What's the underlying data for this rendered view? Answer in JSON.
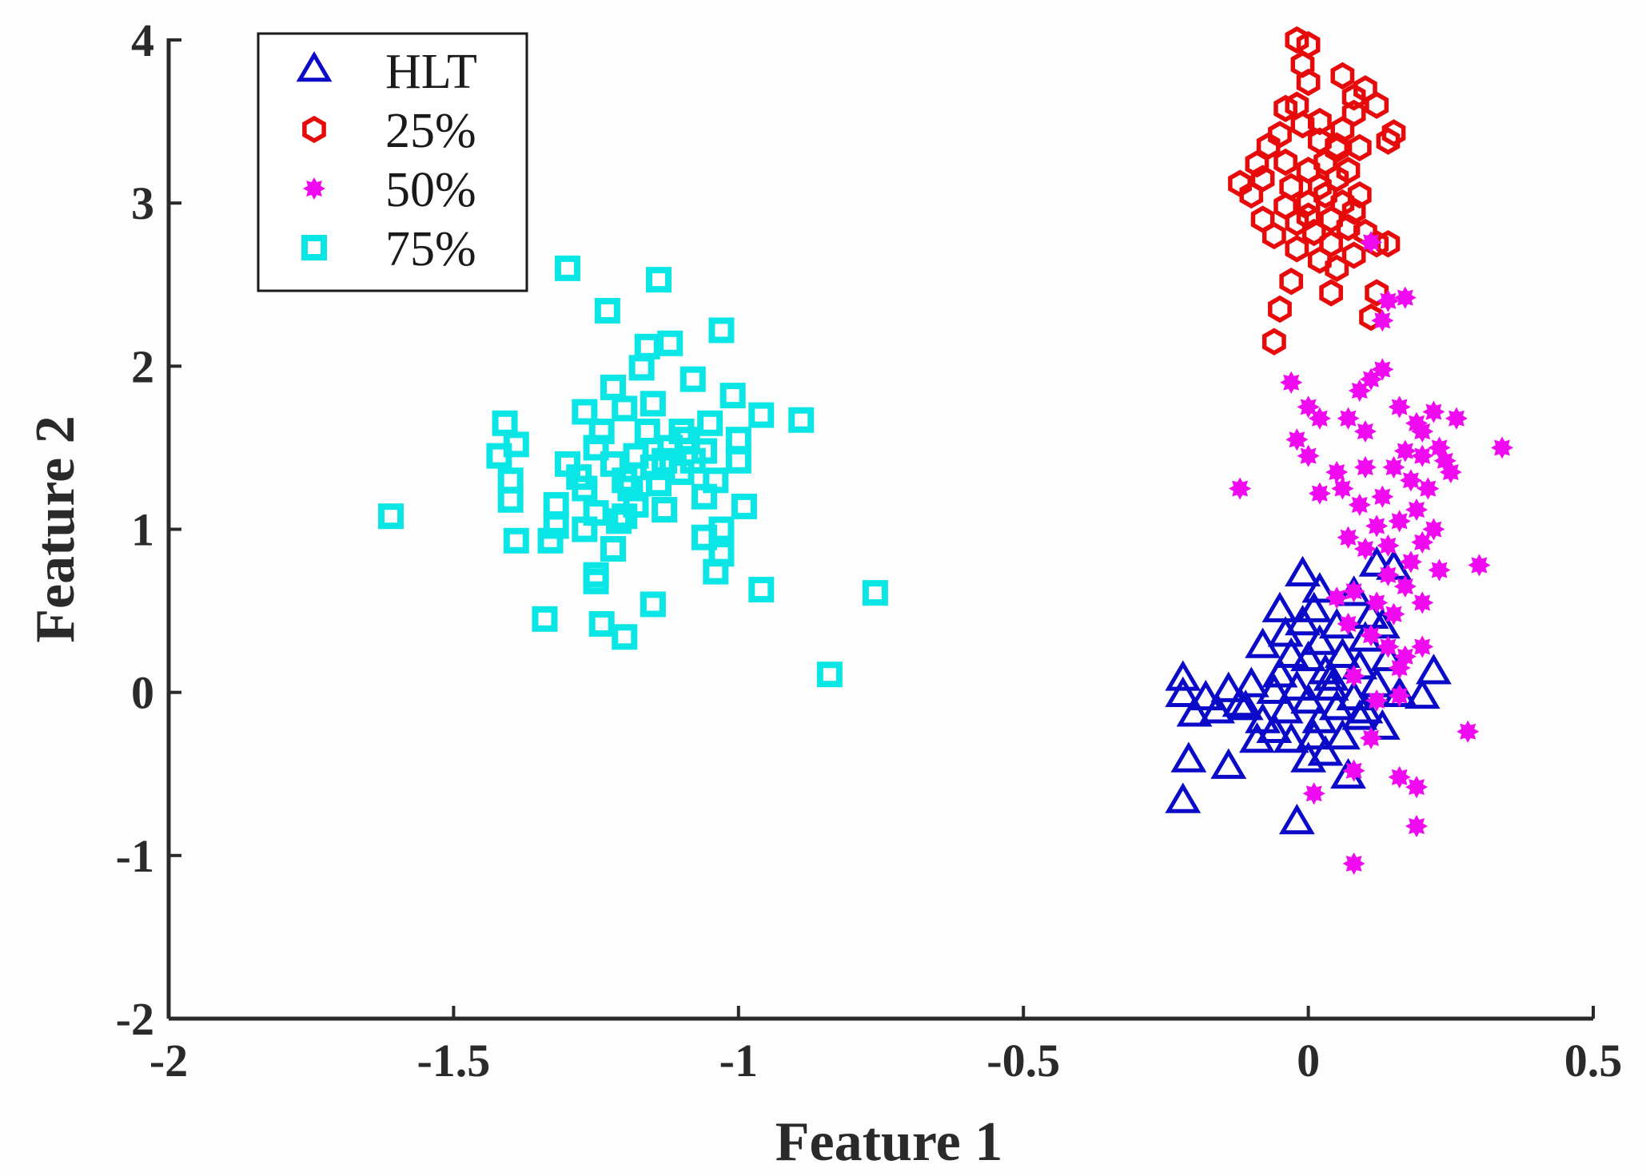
{
  "chart_data": {
    "type": "scatter",
    "title": "",
    "xlabel": "Feature 1",
    "ylabel": "Feature 2",
    "xlim": [
      -2,
      0.5
    ],
    "ylim": [
      -2,
      4
    ],
    "xticks": [
      -2,
      -1.5,
      -1,
      -0.5,
      0,
      0.5
    ],
    "xtick_labels": [
      "-2",
      "-1.5",
      "-1",
      "-0.5",
      "0",
      "0.5"
    ],
    "yticks": [
      -2,
      -1,
      0,
      1,
      2,
      3,
      4
    ],
    "ytick_labels": [
      "-2",
      "-1",
      "0",
      "1",
      "2",
      "3",
      "4"
    ],
    "grid": false,
    "legend_position": "top-left",
    "series": [
      {
        "name": "HLT",
        "marker": "triangle",
        "color": "#0a0ac8",
        "points": [
          [
            -0.22,
            0.08
          ],
          [
            -0.22,
            -0.02
          ],
          [
            -0.2,
            -0.14
          ],
          [
            -0.21,
            -0.42
          ],
          [
            -0.22,
            -0.67
          ],
          [
            -0.18,
            -0.04
          ],
          [
            -0.14,
            -0.46
          ],
          [
            -0.14,
            0.01
          ],
          [
            -0.12,
            -0.08
          ],
          [
            -0.1,
            0.04
          ],
          [
            -0.08,
            -0.18
          ],
          [
            -0.08,
            0.28
          ],
          [
            -0.06,
            -0.24
          ],
          [
            -0.05,
            0.1
          ],
          [
            -0.04,
            -0.12
          ],
          [
            -0.04,
            0.35
          ],
          [
            -0.03,
            -0.3
          ],
          [
            -0.02,
            0.02
          ],
          [
            -0.02,
            -0.8
          ],
          [
            -0.01,
            0.42
          ],
          [
            0.0,
            -0.06
          ],
          [
            0.0,
            0.2
          ],
          [
            -0.01,
            0.72
          ],
          [
            0.01,
            0.5
          ],
          [
            0.02,
            -0.18
          ],
          [
            0.02,
            0.3
          ],
          [
            0.03,
            0.12
          ],
          [
            0.03,
            -0.38
          ],
          [
            0.04,
            0.02
          ],
          [
            0.05,
            0.4
          ],
          [
            0.05,
            -0.1
          ],
          [
            0.06,
            0.22
          ],
          [
            0.07,
            -0.52
          ],
          [
            0.08,
            -0.04
          ],
          [
            0.08,
            0.6
          ],
          [
            0.09,
            0.15
          ],
          [
            0.1,
            -0.12
          ],
          [
            0.1,
            0.32
          ],
          [
            0.12,
            0.78
          ],
          [
            0.12,
            0.04
          ],
          [
            0.13,
            -0.22
          ],
          [
            0.14,
            0.2
          ],
          [
            0.15,
            0.76
          ],
          [
            0.16,
            -0.02
          ],
          [
            0.2,
            -0.03
          ],
          [
            0.22,
            0.12
          ],
          [
            -0.06,
            0.0
          ],
          [
            -0.03,
            0.22
          ],
          [
            0.01,
            -0.28
          ],
          [
            0.04,
            0.08
          ],
          [
            0.06,
            -0.28
          ],
          [
            -0.09,
            -0.3
          ],
          [
            0.0,
            -0.42
          ],
          [
            0.11,
            0.46
          ],
          [
            -0.05,
            0.5
          ],
          [
            0.02,
            0.62
          ],
          [
            0.09,
            -0.16
          ],
          [
            -0.11,
            -0.1
          ],
          [
            -0.16,
            -0.12
          ],
          [
            0.13,
            0.4
          ]
        ]
      },
      {
        "name": "25%",
        "marker": "hexagon",
        "color": "#e60a0a",
        "points": [
          [
            -0.02,
            4.0
          ],
          [
            0.0,
            3.97
          ],
          [
            -0.01,
            3.85
          ],
          [
            0.0,
            3.74
          ],
          [
            0.06,
            3.78
          ],
          [
            0.1,
            3.7
          ],
          [
            0.12,
            3.6
          ],
          [
            0.08,
            3.55
          ],
          [
            0.15,
            3.43
          ],
          [
            0.14,
            3.38
          ],
          [
            -0.04,
            3.58
          ],
          [
            -0.01,
            3.48
          ],
          [
            0.02,
            3.38
          ],
          [
            0.05,
            3.33
          ],
          [
            0.09,
            3.34
          ],
          [
            -0.07,
            3.35
          ],
          [
            -0.09,
            3.24
          ],
          [
            -0.12,
            3.12
          ],
          [
            -0.08,
            3.15
          ],
          [
            -0.03,
            3.1
          ],
          [
            0.0,
            3.2
          ],
          [
            0.03,
            3.05
          ],
          [
            0.06,
            3.0
          ],
          [
            0.08,
            2.95
          ],
          [
            -0.04,
            2.98
          ],
          [
            -0.02,
            2.88
          ],
          [
            0.01,
            2.82
          ],
          [
            0.04,
            2.9
          ],
          [
            0.07,
            2.85
          ],
          [
            0.1,
            2.82
          ],
          [
            0.12,
            2.75
          ],
          [
            0.14,
            2.75
          ],
          [
            -0.06,
            2.8
          ],
          [
            -0.02,
            2.72
          ],
          [
            0.02,
            2.65
          ],
          [
            0.05,
            2.6
          ],
          [
            0.08,
            2.68
          ],
          [
            -0.03,
            2.52
          ],
          [
            0.04,
            2.45
          ],
          [
            0.12,
            2.45
          ],
          [
            -0.05,
            2.35
          ],
          [
            -0.06,
            2.15
          ],
          [
            0.11,
            2.3
          ],
          [
            0.02,
            3.5
          ],
          [
            -0.05,
            3.42
          ],
          [
            0.05,
            3.15
          ],
          [
            0.0,
            3.0
          ],
          [
            -0.1,
            3.05
          ],
          [
            0.03,
            3.25
          ],
          [
            0.06,
            3.45
          ],
          [
            0.08,
            3.65
          ],
          [
            -0.02,
            3.6
          ],
          [
            0.0,
            2.92
          ],
          [
            0.04,
            2.75
          ],
          [
            -0.08,
            2.9
          ],
          [
            0.02,
            3.1
          ],
          [
            0.05,
            3.35
          ],
          [
            -0.04,
            3.25
          ],
          [
            0.09,
            3.05
          ],
          [
            0.07,
            3.2
          ]
        ]
      },
      {
        "name": "50%",
        "marker": "star",
        "color": "#f00af0",
        "points": [
          [
            0.11,
            2.76
          ],
          [
            0.14,
            2.4
          ],
          [
            0.13,
            2.28
          ],
          [
            0.17,
            2.42
          ],
          [
            0.13,
            1.98
          ],
          [
            0.11,
            1.92
          ],
          [
            0.09,
            1.85
          ],
          [
            -0.03,
            1.9
          ],
          [
            0.0,
            1.75
          ],
          [
            0.02,
            1.68
          ],
          [
            0.07,
            1.68
          ],
          [
            0.16,
            1.75
          ],
          [
            0.19,
            1.65
          ],
          [
            0.22,
            1.72
          ],
          [
            0.23,
            1.5
          ],
          [
            0.2,
            1.6
          ],
          [
            0.26,
            1.68
          ],
          [
            0.34,
            1.5
          ],
          [
            -0.02,
            1.55
          ],
          [
            0.0,
            1.45
          ],
          [
            0.05,
            1.35
          ],
          [
            0.1,
            1.38
          ],
          [
            0.15,
            1.38
          ],
          [
            0.17,
            1.48
          ],
          [
            0.18,
            1.3
          ],
          [
            0.2,
            1.45
          ],
          [
            0.24,
            1.42
          ],
          [
            -0.12,
            1.25
          ],
          [
            0.02,
            1.22
          ],
          [
            0.06,
            1.25
          ],
          [
            0.09,
            1.15
          ],
          [
            0.13,
            1.2
          ],
          [
            0.16,
            1.05
          ],
          [
            0.19,
            1.12
          ],
          [
            0.22,
            1.0
          ],
          [
            0.07,
            0.95
          ],
          [
            0.1,
            0.88
          ],
          [
            0.14,
            0.9
          ],
          [
            0.18,
            0.8
          ],
          [
            0.2,
            0.92
          ],
          [
            0.23,
            0.75
          ],
          [
            0.3,
            0.78
          ],
          [
            0.08,
            0.62
          ],
          [
            0.12,
            0.55
          ],
          [
            0.15,
            0.48
          ],
          [
            0.2,
            0.55
          ],
          [
            0.07,
            0.42
          ],
          [
            0.11,
            0.35
          ],
          [
            0.14,
            0.28
          ],
          [
            0.17,
            0.22
          ],
          [
            0.2,
            0.28
          ],
          [
            0.16,
            0.15
          ],
          [
            0.08,
            0.1
          ],
          [
            0.12,
            -0.05
          ],
          [
            0.16,
            -0.02
          ],
          [
            0.11,
            -0.28
          ],
          [
            0.28,
            -0.24
          ],
          [
            0.08,
            -0.48
          ],
          [
            0.16,
            -0.52
          ],
          [
            0.19,
            -0.58
          ],
          [
            0.01,
            -0.62
          ],
          [
            0.19,
            -0.82
          ],
          [
            0.08,
            -1.05
          ],
          [
            0.21,
            1.25
          ],
          [
            0.12,
            1.02
          ],
          [
            0.17,
            0.65
          ],
          [
            0.05,
            0.58
          ],
          [
            0.14,
            0.72
          ],
          [
            0.1,
            1.6
          ],
          [
            0.25,
            1.35
          ]
        ]
      },
      {
        "name": "75%",
        "marker": "square",
        "color": "#0ae6e6",
        "points": [
          [
            -1.3,
            2.6
          ],
          [
            -1.14,
            2.53
          ],
          [
            -1.23,
            2.34
          ],
          [
            -1.03,
            2.22
          ],
          [
            -1.16,
            2.12
          ],
          [
            -1.12,
            2.14
          ],
          [
            -1.17,
            1.99
          ],
          [
            -1.08,
            1.92
          ],
          [
            -1.22,
            1.87
          ],
          [
            -1.01,
            1.82
          ],
          [
            -1.27,
            1.72
          ],
          [
            -1.2,
            1.74
          ],
          [
            -1.15,
            1.77
          ],
          [
            -0.96,
            1.7
          ],
          [
            -0.89,
            1.67
          ],
          [
            -1.41,
            1.65
          ],
          [
            -1.1,
            1.6
          ],
          [
            -1.05,
            1.65
          ],
          [
            -1.0,
            1.55
          ],
          [
            -1.39,
            1.52
          ],
          [
            -1.25,
            1.5
          ],
          [
            -1.18,
            1.45
          ],
          [
            -1.12,
            1.5
          ],
          [
            -1.06,
            1.48
          ],
          [
            -1.42,
            1.45
          ],
          [
            -1.3,
            1.4
          ],
          [
            -1.22,
            1.4
          ],
          [
            -1.15,
            1.38
          ],
          [
            -1.08,
            1.42
          ],
          [
            -1.0,
            1.42
          ],
          [
            -1.4,
            1.3
          ],
          [
            -1.27,
            1.25
          ],
          [
            -1.2,
            1.3
          ],
          [
            -1.14,
            1.28
          ],
          [
            -1.04,
            1.3
          ],
          [
            -1.4,
            1.18
          ],
          [
            -1.32,
            1.15
          ],
          [
            -1.25,
            1.1
          ],
          [
            -1.18,
            1.15
          ],
          [
            -1.13,
            1.12
          ],
          [
            -0.99,
            1.14
          ],
          [
            -1.61,
            1.08
          ],
          [
            -1.32,
            1.02
          ],
          [
            -1.27,
            1.0
          ],
          [
            -1.21,
            1.05
          ],
          [
            -1.03,
            1.0
          ],
          [
            -1.39,
            0.93
          ],
          [
            -1.33,
            0.93
          ],
          [
            -1.22,
            0.88
          ],
          [
            -1.06,
            0.95
          ],
          [
            -1.03,
            0.85
          ],
          [
            -1.25,
            0.68
          ],
          [
            -1.04,
            0.74
          ],
          [
            -0.96,
            0.63
          ],
          [
            -0.76,
            0.61
          ],
          [
            -1.15,
            0.54
          ],
          [
            -1.34,
            0.45
          ],
          [
            -1.24,
            0.42
          ],
          [
            -1.2,
            0.34
          ],
          [
            -0.84,
            0.11
          ],
          [
            -1.25,
            0.72
          ],
          [
            -1.1,
            1.35
          ],
          [
            -1.16,
            1.6
          ],
          [
            -1.24,
            1.6
          ],
          [
            -1.09,
            1.55
          ],
          [
            -1.19,
            1.25
          ],
          [
            -1.13,
            1.42
          ],
          [
            -1.2,
            1.08
          ],
          [
            -1.06,
            1.2
          ],
          [
            -1.28,
            1.32
          ]
        ]
      }
    ]
  }
}
